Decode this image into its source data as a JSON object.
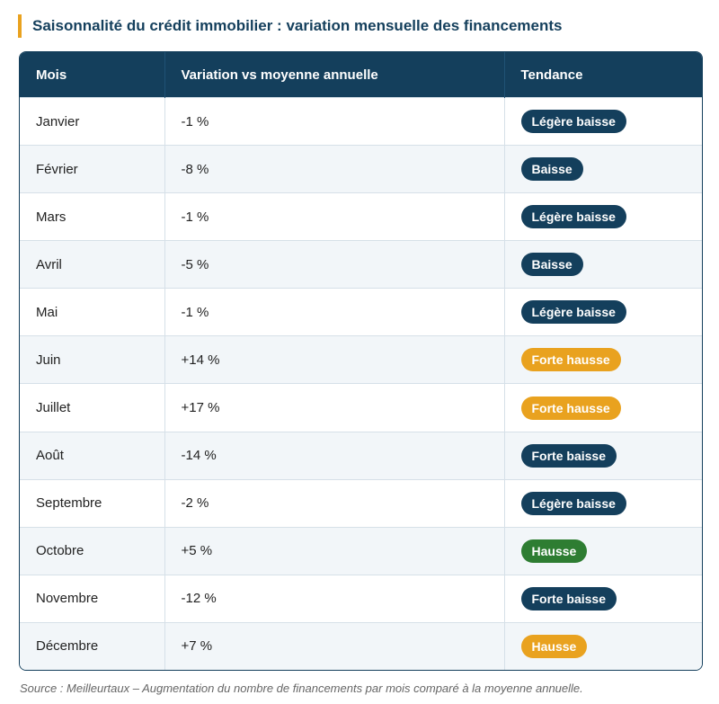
{
  "header": {
    "title": "Saisonnalité du crédit immobilier : variation mensuelle des financements"
  },
  "table": {
    "columns": [
      "Mois",
      "Variation vs moyenne annuelle",
      "Tendance"
    ],
    "rows": [
      [
        "Janvier",
        "-1 %",
        "Légère baisse"
      ],
      [
        "Février",
        "-8 %",
        "Baisse"
      ],
      [
        "Mars",
        "-1 %",
        "Légère baisse"
      ],
      [
        "Avril",
        "-5 %",
        "Baisse"
      ],
      [
        "Mai",
        "-1 %",
        "Légère baisse"
      ],
      [
        "Juin",
        "+14 %",
        "Forte hausse"
      ],
      [
        "Juillet",
        "+17 %",
        "Forte hausse"
      ],
      [
        "Août",
        "-14 %",
        "Forte baisse"
      ],
      [
        "Septembre",
        "-2 %",
        "Légère baisse"
      ],
      [
        "Octobre",
        "+5 %",
        "Hausse"
      ],
      [
        "Novembre",
        "-12 %",
        "Forte baisse"
      ],
      [
        "Décembre",
        "+7 %",
        "Hausse"
      ]
    ],
    "badge_colors": [
      "#143f5c",
      "#143f5c",
      "#143f5c",
      "#143f5c",
      "#143f5c",
      "#e9a21f",
      "#e9a21f",
      "#143f5c",
      "#143f5c",
      "#2e7d32",
      "#143f5c",
      "#e9a21f"
    ]
  },
  "footer": {
    "source": "Source : Meilleurtaux – Augmentation du nombre de financements par mois comparé à la moyenne annuelle."
  }
}
